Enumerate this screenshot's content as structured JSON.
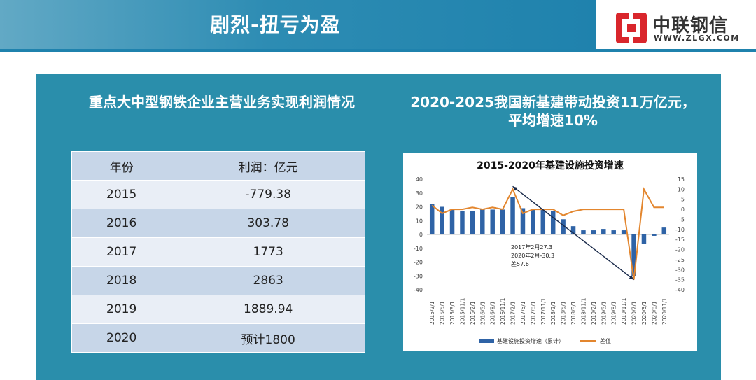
{
  "header": {
    "title": "剧烈-扭亏为盈",
    "logo_name": "中联钢信",
    "logo_url": "WWW.ZLGX.COM"
  },
  "left": {
    "title": "重点大中型钢铁企业主营业务实现利润情况",
    "table": {
      "columns": [
        "年份",
        "利润：亿元"
      ],
      "rows": [
        [
          "2015",
          "-779.38"
        ],
        [
          "2016",
          "303.78"
        ],
        [
          "2017",
          "1773"
        ],
        [
          "2018",
          "2863"
        ],
        [
          "2019",
          "1889.94"
        ],
        [
          "2020",
          "预计1800"
        ]
      ]
    }
  },
  "right": {
    "title_line1": "2020-2025我国新基建带动投资11万亿元，",
    "title_line2": "平均增速10%"
  },
  "chart_data": {
    "type": "bar",
    "title": "2015-2020年基建设施投资增速",
    "x": [
      "2015/2/1",
      "2015/5/1",
      "2015/8/1",
      "2015/11/1",
      "2016/2/1",
      "2016/5/1",
      "2016/8/1",
      "2016/11/1",
      "2017/2/1",
      "2017/5/1",
      "2017/8/1",
      "2017/11/1",
      "2018/2/1",
      "2018/5/1",
      "2018/8/1",
      "2018/11/1",
      "2019/2/1",
      "2019/5/1",
      "2019/8/1",
      "2019/11/1",
      "2020/2/1",
      "2020/5/1",
      "2020/8/1",
      "2020/11/1"
    ],
    "ylim_left": [
      -40,
      40
    ],
    "yticks_left": [
      40,
      30,
      20,
      10,
      0,
      -10,
      -20,
      -30,
      -40
    ],
    "ylim_right": [
      -40,
      15
    ],
    "yticks_right": [
      15,
      10,
      5,
      0,
      -5,
      -10,
      -15,
      -20,
      -25,
      -30,
      -35,
      -40
    ],
    "series": [
      {
        "name": "基建设施投资增速（累计）",
        "color": "#2f63a6",
        "axis": "left",
        "values": [
          22,
          20,
          18,
          17,
          17,
          18,
          18,
          18,
          27,
          19,
          18,
          18,
          17,
          11,
          6,
          3,
          3,
          4,
          3,
          3,
          -30,
          -7,
          -1,
          5
        ]
      },
      {
        "name": "差值",
        "color": "#e3862e",
        "axis": "right",
        "values": [
          2,
          -2,
          0,
          0,
          1,
          0,
          1,
          0,
          10,
          -2,
          0,
          0,
          0,
          -3,
          -1,
          0,
          0,
          0,
          0,
          0,
          -35,
          10,
          1,
          1
        ]
      }
    ],
    "annotation": {
      "lines": [
        "2017年2月27.3",
        "2020年2月-30.3",
        "差57.6"
      ]
    }
  }
}
